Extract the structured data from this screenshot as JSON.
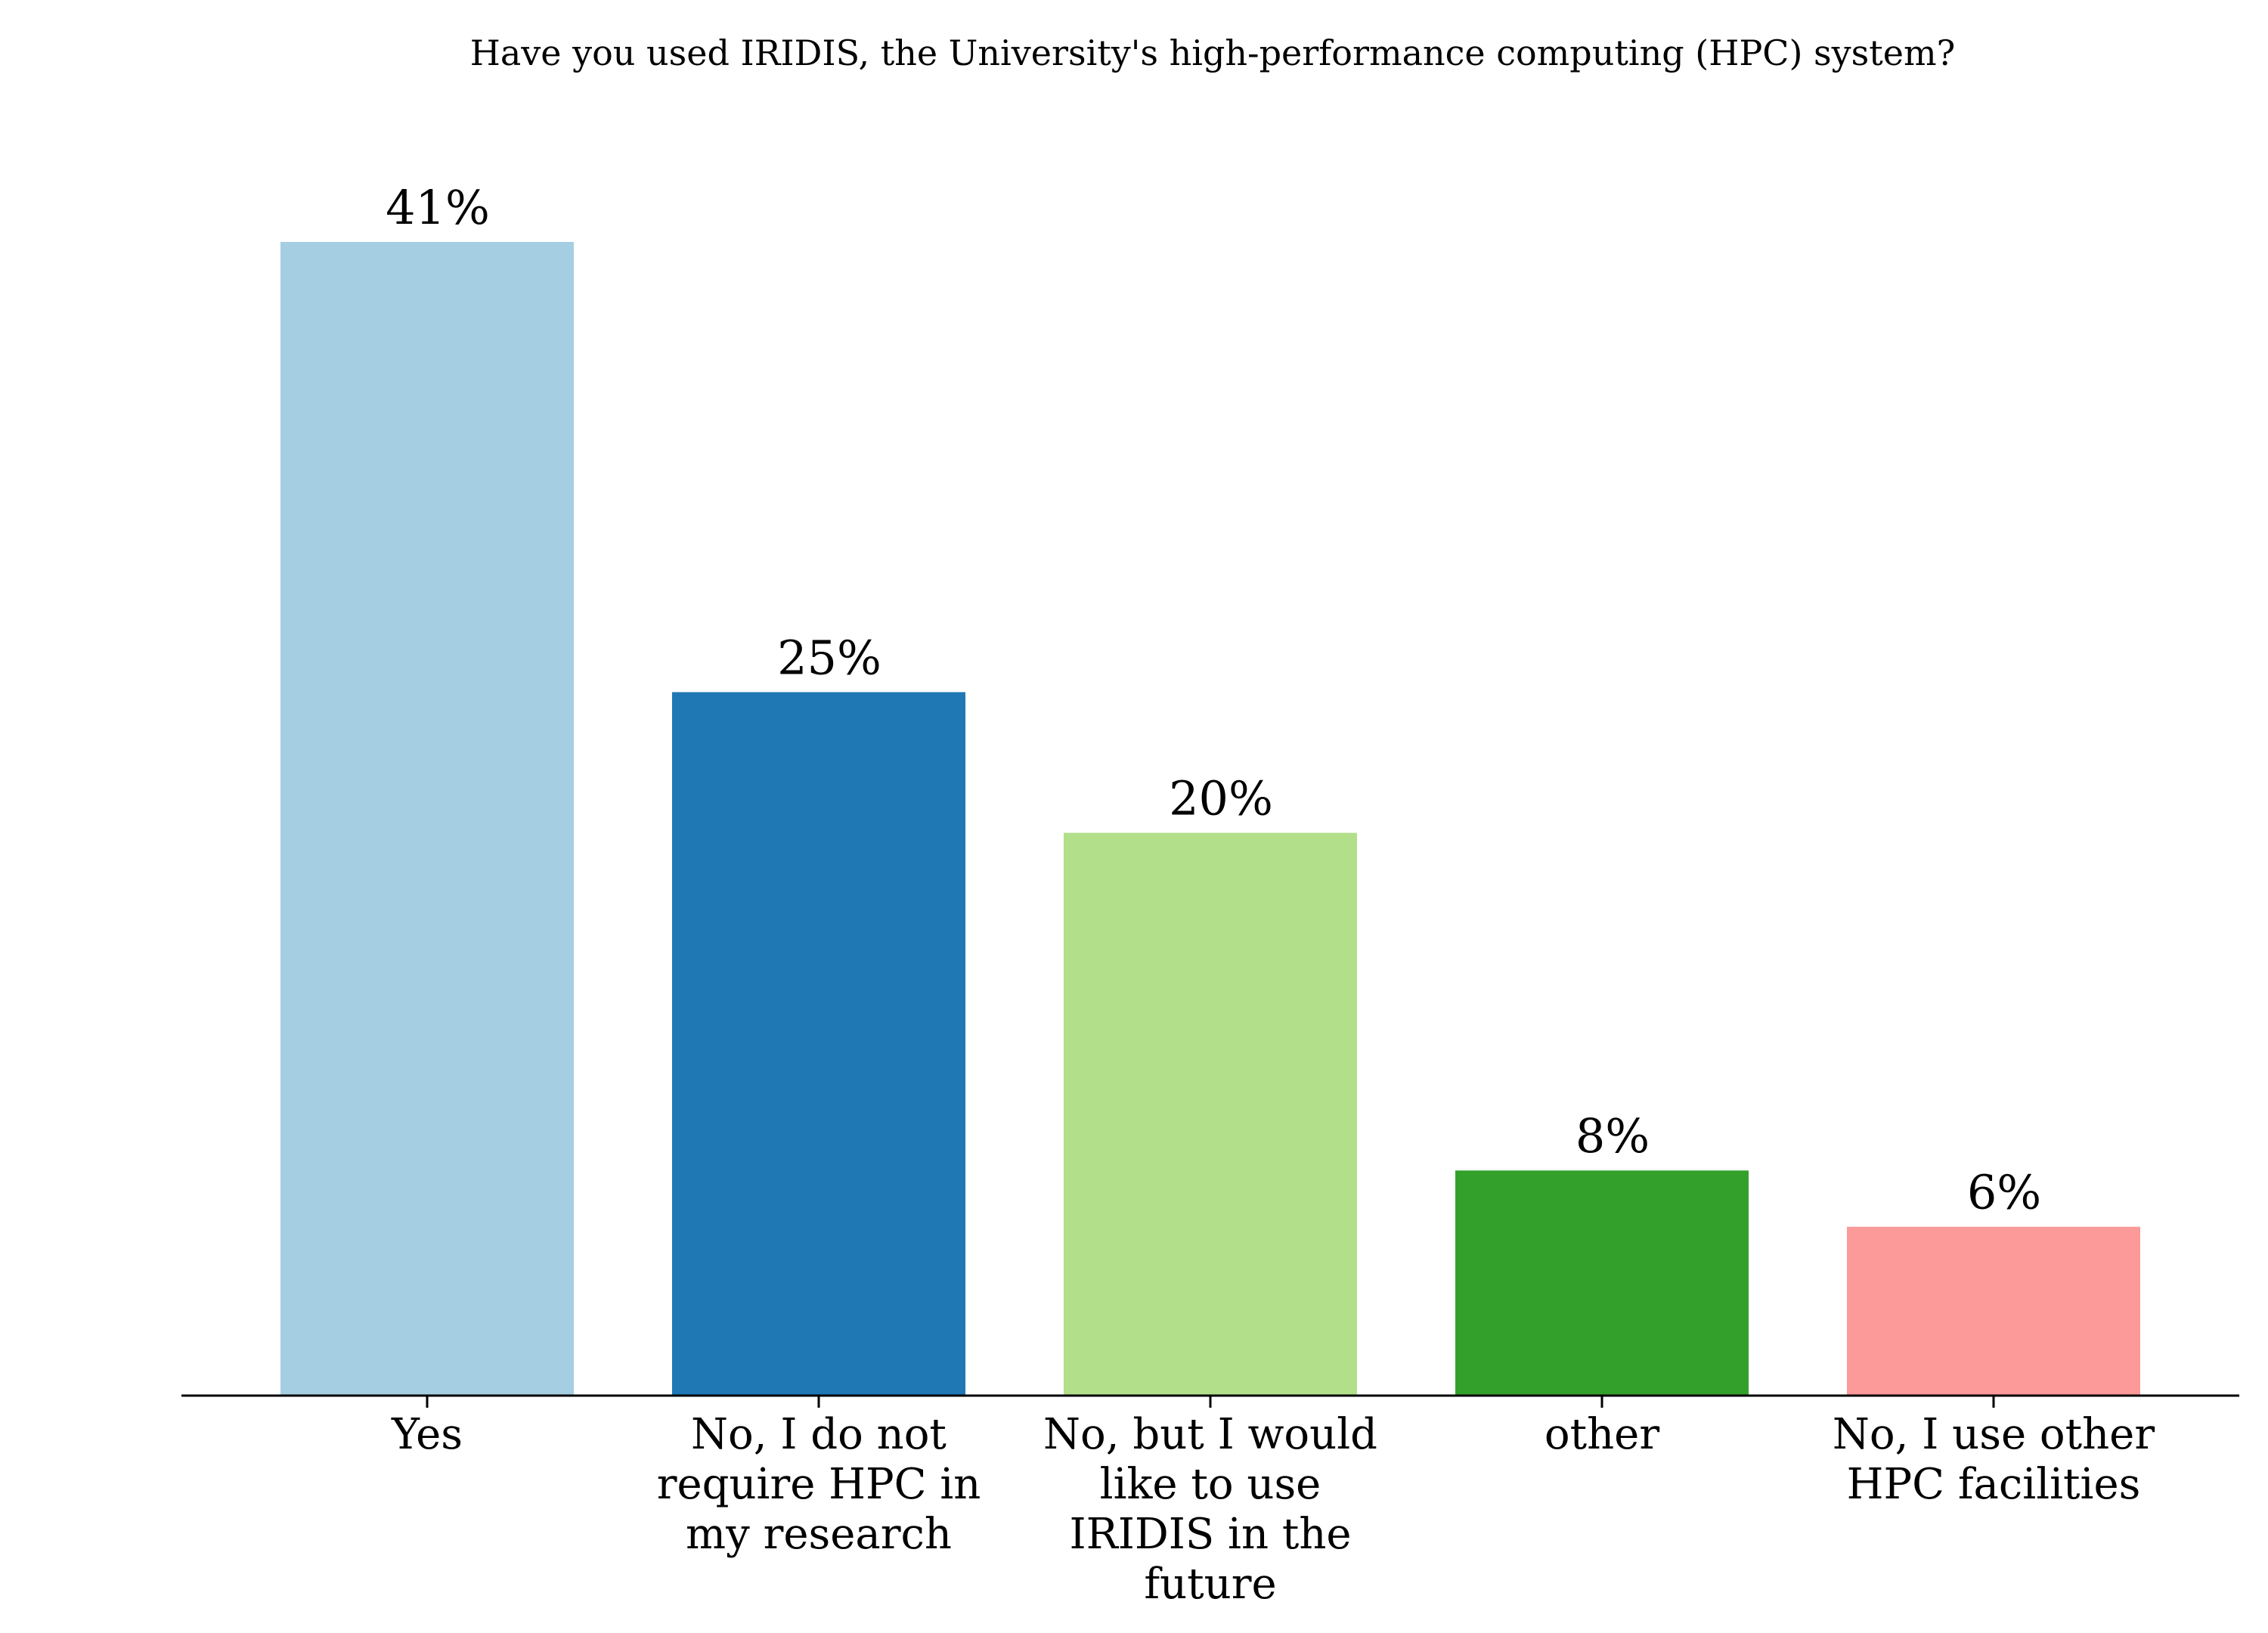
{
  "chart_data": {
    "type": "bar",
    "title": "Have you used IRIDIS, the University's high-performance computing (HPC) system?",
    "xlabel": "",
    "ylabel": "",
    "categories": [
      "Yes",
      "No, I do not require HPC in my research",
      "No, but I would like to use IRIDIS in the future",
      "other",
      "No, I use other HPC facilities"
    ],
    "category_label_lines": [
      [
        "Yes"
      ],
      [
        "No, I do not",
        "require HPC in",
        "my research"
      ],
      [
        "No, but I would",
        "like to use",
        "IRIDIS in the",
        "future"
      ],
      [
        "other"
      ],
      [
        "No, I use other",
        "HPC facilities"
      ]
    ],
    "values": [
      41,
      25,
      20,
      8,
      6
    ],
    "data_labels": [
      "41%",
      "25%",
      "20%",
      "8%",
      "6%"
    ],
    "colors": [
      "#a6cee3",
      "#1f78b4",
      "#b2df8a",
      "#33a02c",
      "#fb9a99"
    ],
    "ylim": [
      0,
      45
    ],
    "grid": false,
    "legend": "none"
  }
}
